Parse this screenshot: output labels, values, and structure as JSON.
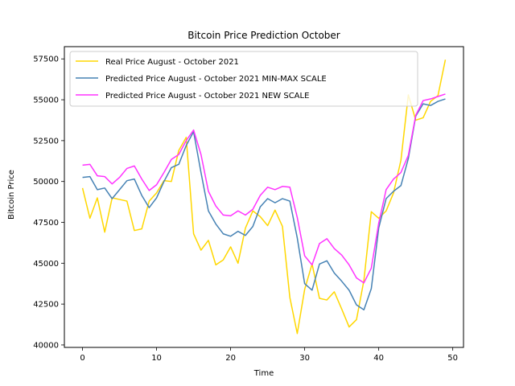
{
  "chart_data": {
    "type": "line",
    "title": "Bitcoin Price Prediction October",
    "xlabel": "Time",
    "ylabel": "Bitcoin Price",
    "xlim": [
      -2.45,
      51.45
    ],
    "ylim": [
      39850,
      58250
    ],
    "xticks": [
      0,
      10,
      20,
      30,
      40,
      50
    ],
    "yticks": [
      40000,
      42500,
      45000,
      47500,
      50000,
      52500,
      55000,
      57500
    ],
    "grid": false,
    "legend_position": "upper-left",
    "series": [
      {
        "name": "Real Price August - October 2021",
        "color": "#ffd700",
        "values": [
          49600,
          47750,
          49000,
          46900,
          49000,
          48900,
          48800,
          47000,
          47100,
          48800,
          49300,
          50050,
          50000,
          51900,
          52700,
          46800,
          45800,
          46400,
          44900,
          45200,
          46000,
          45000,
          47150,
          48200,
          47850,
          47300,
          48250,
          47250,
          42900,
          40700,
          43400,
          44950,
          42850,
          42750,
          43250,
          42200,
          41100,
          41550,
          43950,
          48150,
          47750,
          48200,
          49300,
          51300,
          55300,
          53750,
          53900,
          54900,
          55250,
          57450
        ]
      },
      {
        "name": "Predicted Price August - October 2021 MIN-MAX SCALE",
        "color": "#4682b4",
        "values": [
          50250,
          50300,
          49500,
          49600,
          48950,
          49500,
          50050,
          50150,
          49150,
          48400,
          49000,
          50000,
          50850,
          51050,
          52200,
          53050,
          50550,
          48200,
          47400,
          46800,
          46650,
          46950,
          46700,
          47250,
          48450,
          48950,
          48700,
          48950,
          48800,
          46550,
          43750,
          43350,
          44950,
          45150,
          44400,
          43900,
          43350,
          42450,
          42150,
          43450,
          47150,
          48950,
          49400,
          49750,
          51400,
          54000,
          54750,
          54650,
          54900,
          55050
        ]
      },
      {
        "name": "Predicted Price August - October 2021 NEW SCALE",
        "color": "#ff33ff",
        "values": [
          51000,
          51050,
          50350,
          50300,
          49850,
          50250,
          50800,
          50950,
          50150,
          49450,
          49800,
          50550,
          51350,
          51650,
          52500,
          53150,
          51650,
          49400,
          48500,
          47950,
          47900,
          48200,
          47950,
          48300,
          49150,
          49650,
          49500,
          49700,
          49650,
          47800,
          45450,
          44900,
          46200,
          46500,
          45900,
          45500,
          44900,
          44100,
          43800,
          44700,
          47450,
          49500,
          50150,
          50550,
          51600,
          54050,
          54950,
          55050,
          55200,
          55350
        ]
      }
    ]
  }
}
